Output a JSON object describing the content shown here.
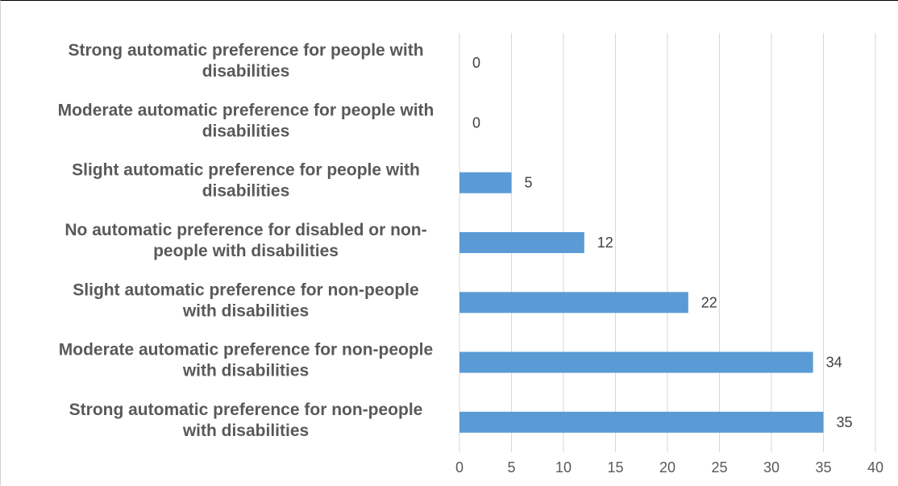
{
  "chart_data": {
    "type": "bar",
    "orientation": "horizontal",
    "categories": [
      "Strong automatic preference for people with disabilities",
      "Moderate automatic preference for people with disabilities",
      "Slight automatic preference for people with disabilities",
      "No automatic preference for disabled or non-people with disabilities",
      "Slight automatic preference for non-people with disabilities",
      "Moderate automatic preference for non-people with disabilities",
      "Strong automatic preference for non-people with disabilities"
    ],
    "category_lines": [
      [
        "Strong automatic preference for people with",
        "disabilities"
      ],
      [
        "Moderate automatic preference for people with",
        "disabilities"
      ],
      [
        "Slight automatic preference for people with",
        "disabilities"
      ],
      [
        "No automatic preference for disabled or non-",
        "people with disabilities"
      ],
      [
        "Slight automatic preference for non-people",
        "with disabilities"
      ],
      [
        "Moderate automatic preference for non-people",
        "with disabilities"
      ],
      [
        "Strong automatic preference for non-people",
        "with disabilities"
      ]
    ],
    "values": [
      0,
      0,
      5,
      12,
      22,
      34,
      35
    ],
    "xlim": [
      0,
      40
    ],
    "x_ticks": [
      "0",
      "5",
      "10",
      "15",
      "20",
      "25",
      "30",
      "35",
      "40"
    ],
    "grid": "vertical",
    "data_labels": true,
    "title": "",
    "xlabel": "",
    "ylabel": "",
    "colors": {
      "bar": "#5b9bd5",
      "grid": "#d9d9d9",
      "text": "#595959",
      "data_label": "#404040"
    }
  }
}
